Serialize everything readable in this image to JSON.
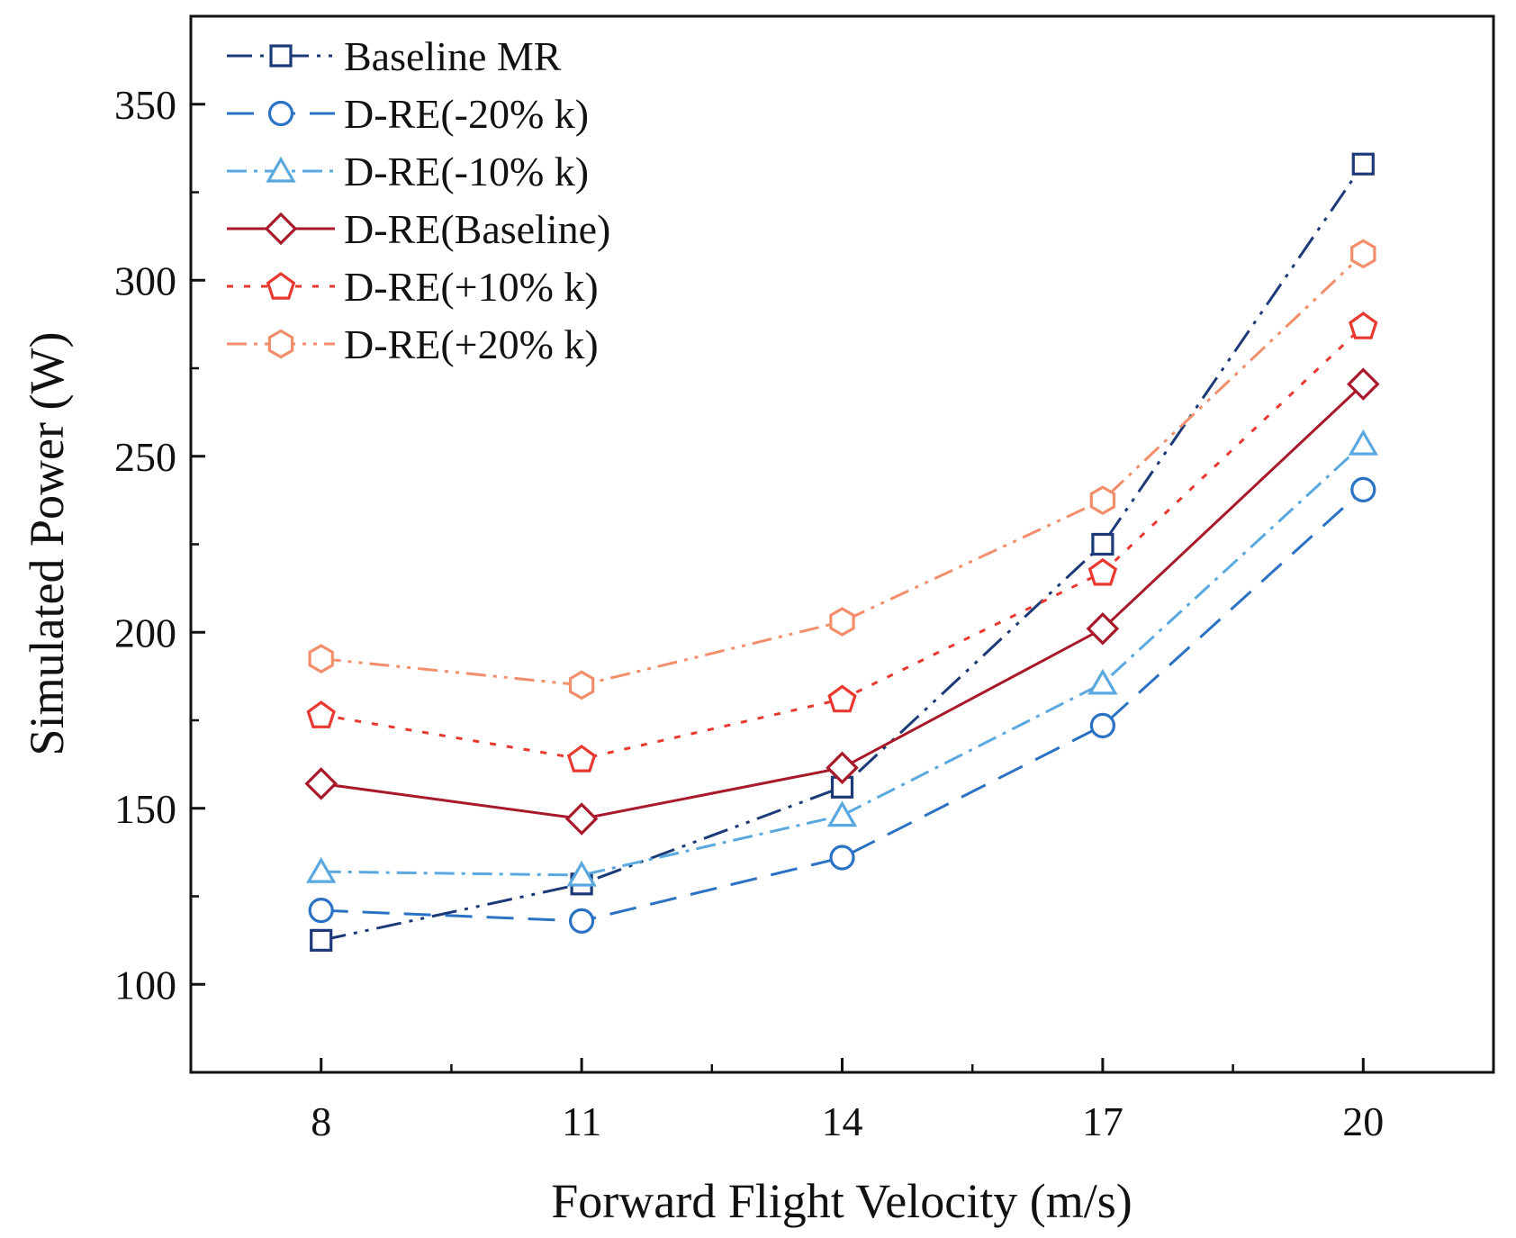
{
  "chart_data": {
    "type": "line",
    "title": "",
    "xlabel": "Forward Flight Velocity (m/s)",
    "ylabel": "Simulated Power (W)",
    "x": [
      8,
      11,
      14,
      17,
      20
    ],
    "x_ticks": [
      "8",
      "11",
      "14",
      "17",
      "20"
    ],
    "y_ticks": [
      "100",
      "150",
      "200",
      "250",
      "300",
      "350"
    ],
    "xlim": [
      6.5,
      21.5
    ],
    "ylim": [
      75,
      375
    ],
    "legend_position": "top-left",
    "grid": false,
    "series": [
      {
        "name": "Baseline MR",
        "values": [
          112.5,
          128.5,
          156,
          225,
          333
        ],
        "color": "#1c3a78",
        "marker": "square",
        "dash": "28 9 4 9 4 9"
      },
      {
        "name": "D-RE(-20% k)",
        "values": [
          121,
          118,
          136,
          173.5,
          240.5
        ],
        "color": "#2b72c4",
        "marker": "circle",
        "dash": "30 16"
      },
      {
        "name": "D-RE(-10% k)",
        "values": [
          132,
          131,
          148,
          185.5,
          253.5
        ],
        "color": "#5aa8e0",
        "marker": "triangle",
        "dash": "22 8 4 8"
      },
      {
        "name": "D-RE(Baseline)",
        "values": [
          157,
          147,
          161.5,
          201,
          270.5
        ],
        "color": "#a8192a",
        "marker": "diamond",
        "dash": ""
      },
      {
        "name": "D-RE(+10% k)",
        "values": [
          176.5,
          164,
          181,
          217,
          287
        ],
        "color": "#e8382f",
        "marker": "pentagon",
        "dash": "7 12"
      },
      {
        "name": "D-RE(+20% k)",
        "values": [
          192.5,
          185,
          203,
          237.5,
          307.5
        ],
        "color": "#f28e6b",
        "marker": "hexagon",
        "dash": "22 8 4 8 4 8"
      }
    ]
  }
}
